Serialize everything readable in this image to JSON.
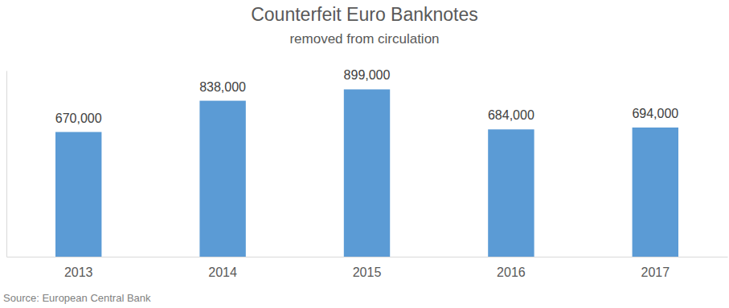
{
  "chart_data": {
    "type": "bar",
    "title": "Counterfeit Euro Banknotes",
    "subtitle": "removed from circulation",
    "source": "Source: European Central Bank",
    "categories": [
      "2013",
      "2014",
      "2015",
      "2016",
      "2017"
    ],
    "values": [
      670000,
      838000,
      899000,
      684000,
      694000
    ],
    "value_labels": [
      "670,000",
      "838,000",
      "899,000",
      "684,000",
      "694,000"
    ],
    "color": "#5b9bd5",
    "ylim": [
      0,
      1000000
    ],
    "yticks": [],
    "data_labels": true,
    "tick_labels": "x",
    "grid": false
  }
}
